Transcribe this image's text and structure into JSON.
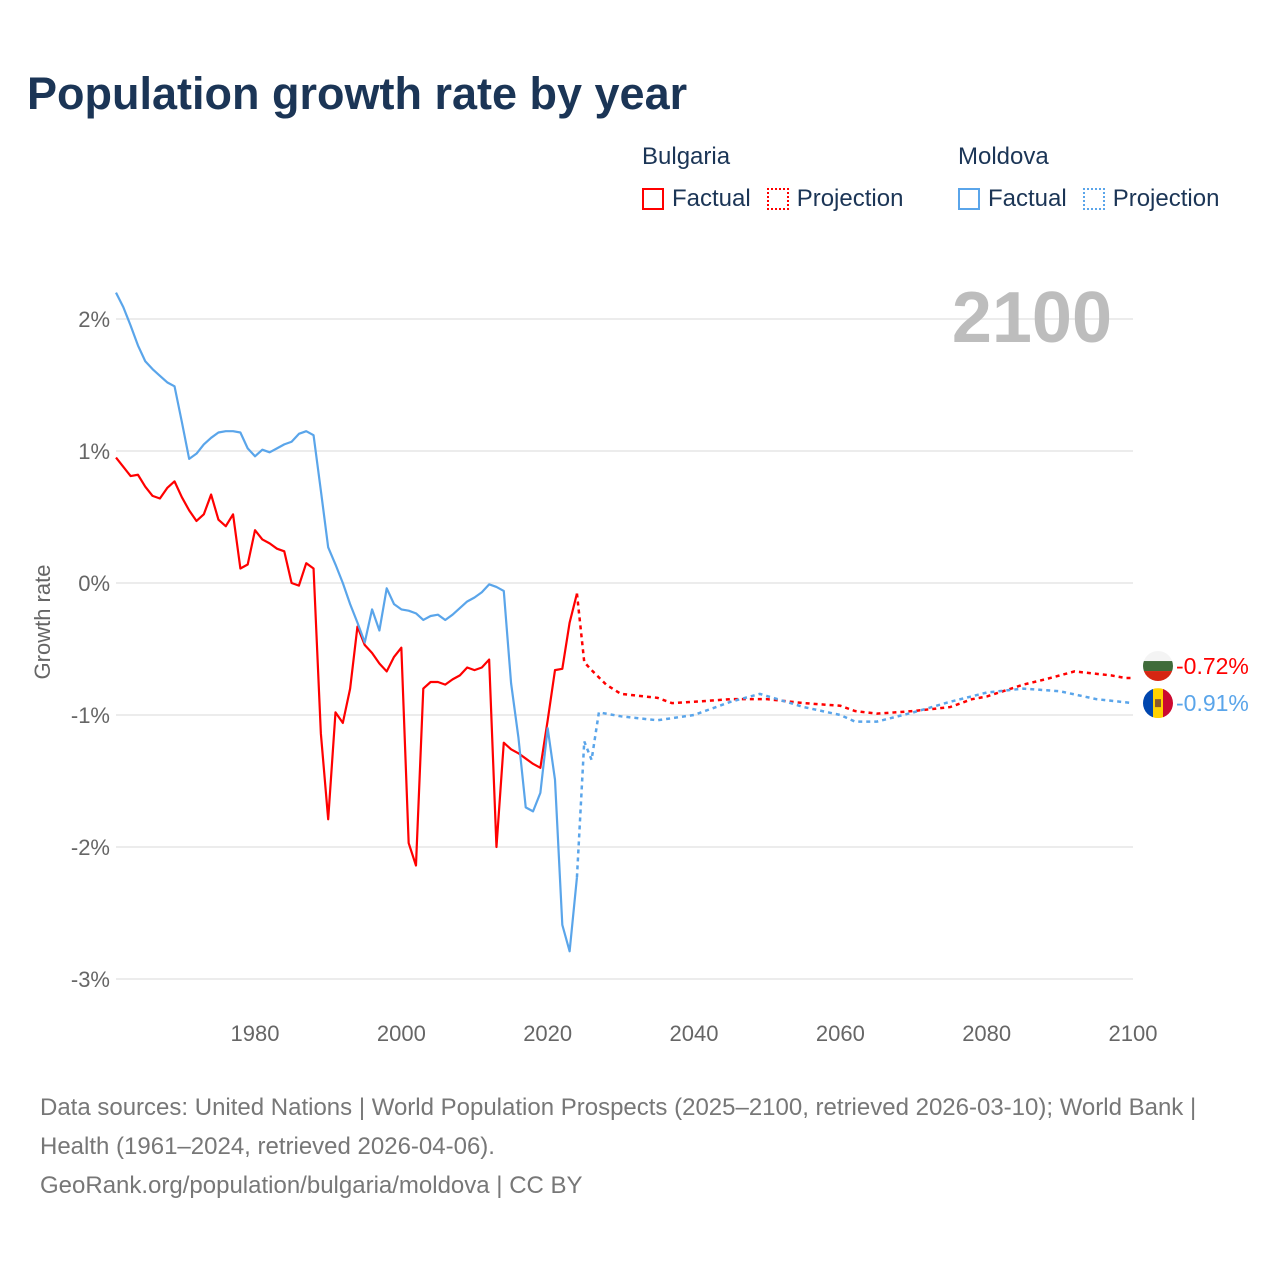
{
  "title": "Population growth rate by year",
  "legend": {
    "groups": [
      {
        "name": "Bulgaria",
        "color": "#ff0000",
        "factual": "Factual",
        "projection": "Projection"
      },
      {
        "name": "Moldova",
        "color": "#5aa5ea",
        "factual": "Factual",
        "projection": "Projection"
      }
    ]
  },
  "year_label": "2100",
  "footer": {
    "line1": "Data sources: United Nations | World Population Prospects (2025–2100, retrieved 2026-03-10); World Bank | Health (1961–2024, retrieved 2026-04-06).",
    "line2": "GeoRank.org/population/bulgaria/moldova | CC BY"
  },
  "chart_data": {
    "type": "line",
    "title": "Population growth rate by year",
    "xlabel": "",
    "ylabel": "Growth rate",
    "xlim": [
      1961,
      2100
    ],
    "ylim": [
      -3.3,
      2.35
    ],
    "x_ticks": [
      1980,
      2000,
      2020,
      2040,
      2060,
      2080,
      2100
    ],
    "y_ticks": [
      2,
      1,
      0,
      -1,
      -2,
      -3
    ],
    "y_tick_labels": [
      "2%",
      "1%",
      "0%",
      "-1%",
      "-2%",
      "-3%"
    ],
    "grid": true,
    "legend_position": "top-right",
    "series": [
      {
        "name": "Bulgaria",
        "color": "#ff0000",
        "end_label": "-0.72%",
        "factual": {
          "start_year": 1961,
          "values": [
            0.95,
            0.88,
            0.81,
            0.82,
            0.73,
            0.66,
            0.64,
            0.72,
            0.77,
            0.65,
            0.55,
            0.47,
            0.52,
            0.67,
            0.48,
            0.43,
            0.52,
            0.11,
            0.14,
            0.4,
            0.33,
            0.3,
            0.26,
            0.24,
            0.0,
            -0.02,
            0.15,
            0.11,
            -1.14,
            -1.79,
            -0.98,
            -1.06,
            -0.8,
            -0.33,
            -0.47,
            -0.53,
            -0.61,
            -0.67,
            -0.56,
            -0.49,
            -1.97,
            -2.14,
            -0.8,
            -0.75,
            -0.75,
            -0.77,
            -0.73,
            -0.7,
            -0.64,
            -0.66,
            -0.64,
            -0.58,
            -2.0,
            -1.21,
            -1.26,
            -1.29,
            -1.33,
            -1.37,
            -1.4,
            -1.04,
            -0.66,
            -0.65,
            -0.3,
            -0.08
          ]
        },
        "projection": {
          "years": [
            2024,
            2025,
            2026,
            2028,
            2030,
            2035,
            2037,
            2040,
            2045,
            2050,
            2055,
            2060,
            2062,
            2065,
            2070,
            2075,
            2078,
            2080,
            2085,
            2088,
            2092,
            2097,
            2099,
            2100
          ],
          "values": [
            -0.08,
            -0.6,
            -0.66,
            -0.77,
            -0.84,
            -0.87,
            -0.91,
            -0.9,
            -0.88,
            -0.88,
            -0.91,
            -0.93,
            -0.97,
            -0.99,
            -0.97,
            -0.94,
            -0.88,
            -0.86,
            -0.77,
            -0.73,
            -0.67,
            -0.7,
            -0.72,
            -0.72
          ]
        }
      },
      {
        "name": "Moldova",
        "color": "#5aa5ea",
        "end_label": "-0.91%",
        "factual": {
          "start_year": 1961,
          "values": [
            2.2,
            2.09,
            1.95,
            1.8,
            1.68,
            1.62,
            1.57,
            1.52,
            1.49,
            1.22,
            0.94,
            0.98,
            1.05,
            1.1,
            1.14,
            1.15,
            1.15,
            1.14,
            1.02,
            0.96,
            1.01,
            0.99,
            1.02,
            1.05,
            1.07,
            1.13,
            1.15,
            1.12,
            0.7,
            0.27,
            0.14,
            0.0,
            -0.16,
            -0.3,
            -0.45,
            -0.2,
            -0.36,
            -0.04,
            -0.16,
            -0.2,
            -0.21,
            -0.23,
            -0.28,
            -0.25,
            -0.24,
            -0.28,
            -0.24,
            -0.19,
            -0.14,
            -0.11,
            -0.07,
            -0.01,
            -0.03,
            -0.06,
            -0.76,
            -1.17,
            -1.7,
            -1.73,
            -1.59,
            -1.1,
            -1.49,
            -2.59,
            -2.79,
            -2.23
          ]
        },
        "projection": {
          "years": [
            2024,
            2025,
            2026,
            2027,
            2030,
            2035,
            2040,
            2045,
            2049,
            2055,
            2060,
            2062,
            2065,
            2070,
            2075,
            2080,
            2085,
            2090,
            2095,
            2100
          ],
          "values": [
            -2.23,
            -1.2,
            -1.34,
            -0.98,
            -1.01,
            -1.04,
            -1.0,
            -0.9,
            -0.84,
            -0.94,
            -1.0,
            -1.05,
            -1.05,
            -0.98,
            -0.9,
            -0.83,
            -0.8,
            -0.82,
            -0.88,
            -0.91
          ]
        }
      }
    ]
  }
}
